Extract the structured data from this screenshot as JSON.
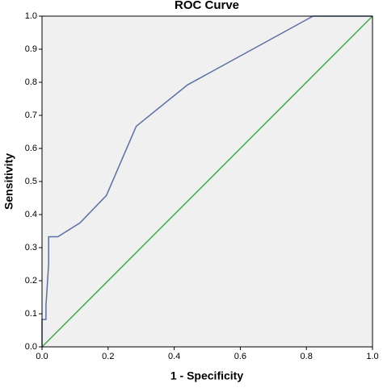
{
  "chart_data": {
    "type": "line",
    "title": "ROC Curve",
    "x_label": "1 - Specificity",
    "y_label": "Sensitivity",
    "xlim": [
      0,
      1
    ],
    "ylim": [
      0,
      1
    ],
    "xticks": [
      {
        "value": 0,
        "label": "0.0"
      },
      0.2,
      0.4,
      0.6,
      0.8,
      {
        "value": 1,
        "label": "1.0"
      }
    ],
    "yticks": [
      {
        "value": 0,
        "label": "0.0"
      },
      0.1,
      0.2,
      0.3,
      0.4,
      0.5,
      0.6,
      0.7,
      0.8,
      0.9,
      {
        "value": 1,
        "label": "1.0"
      }
    ],
    "grid": false,
    "background": "#f0f0f0",
    "series": [
      {
        "color": "#5b6ea6",
        "x": [
          0,
          0,
          0.012,
          0.012,
          0.02,
          0.02,
          0.048,
          0.115,
          0.195,
          0.285,
          0.44,
          0.82,
          1
        ],
        "values": [
          0,
          0.083,
          0.083,
          0.125,
          0.25,
          0.333,
          0.333,
          0.375,
          0.458,
          0.667,
          0.792,
          1,
          1
        ]
      },
      {
        "color": "#3dab4a",
        "x": [
          0,
          1
        ],
        "values": [
          0,
          1
        ]
      }
    ]
  }
}
